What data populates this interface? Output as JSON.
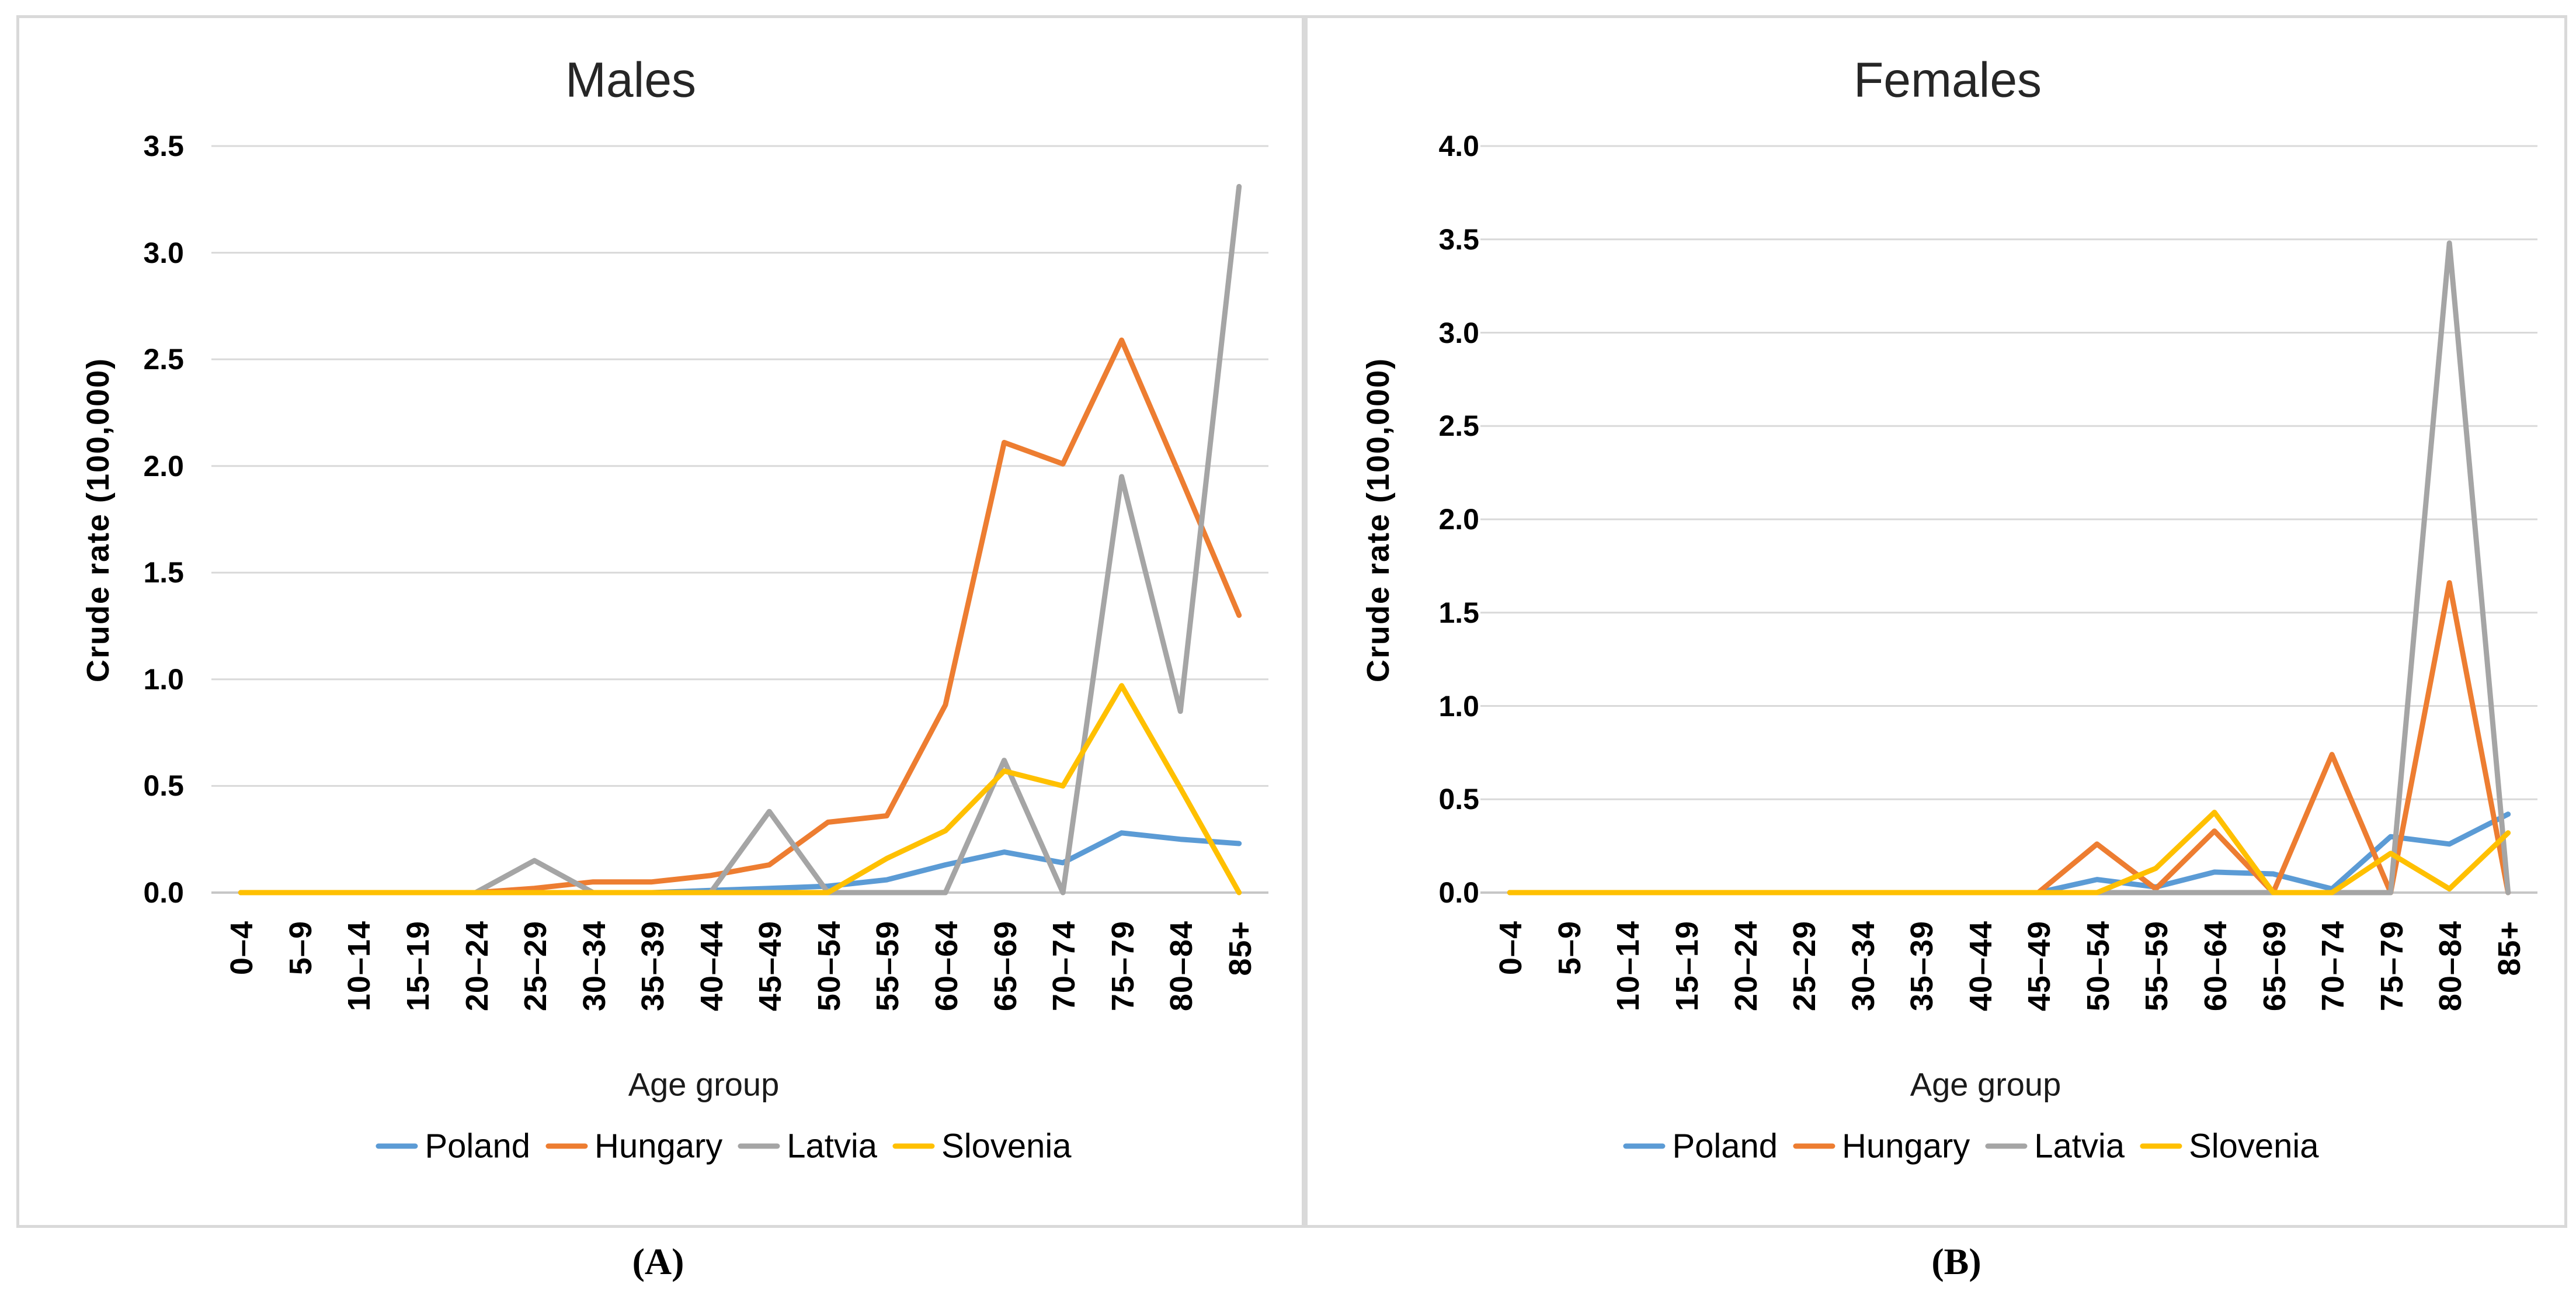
{
  "figure": {
    "background": "#ffffff",
    "captions": [
      "(A)",
      "(B)"
    ]
  },
  "colors": {
    "poland_blue": "#5B9BD5",
    "hungary_orange": "#ED7D31",
    "latvia_gray": "#A5A5A5",
    "slovenia_yellow": "#FFC000",
    "gridline": "#D9D9D9",
    "axis_line": "#C6C6C6",
    "panel_border": "#D9D9D9"
  },
  "chart_data": [
    {
      "type": "line",
      "title": "Males",
      "xlabel": "Age group",
      "ylabel": "Crude rate (100,000)",
      "ylim": [
        0,
        3.5
      ],
      "ytick_step": 0.5,
      "ytick_labels": [
        "3.5",
        "3.0",
        "2.5",
        "2.0",
        "1.5",
        "1.0",
        "0.5",
        "0.0"
      ],
      "grid": true,
      "legend_position": "bottom",
      "categories": [
        "0–4",
        "5–9",
        "10–14",
        "15–19",
        "20–24",
        "25–29",
        "30–34",
        "35–39",
        "40–44",
        "45–49",
        "50–54",
        "55–59",
        "60–64",
        "65–69",
        "70–74",
        "75–79",
        "80–84",
        "85+"
      ],
      "series": [
        {
          "name": "Poland",
          "color": "#5B9BD5",
          "values": [
            0,
            0,
            0,
            0,
            0,
            0,
            0,
            0,
            0.01,
            0.02,
            0.03,
            0.06,
            0.13,
            0.19,
            0.14,
            0.28,
            0.25,
            0.23
          ]
        },
        {
          "name": "Hungary",
          "color": "#ED7D31",
          "values": [
            0,
            0,
            0,
            0,
            0,
            0.02,
            0.05,
            0.05,
            0.08,
            0.13,
            0.33,
            0.36,
            0.88,
            2.11,
            2.01,
            2.59,
            1.95,
            1.3
          ]
        },
        {
          "name": "Latvia",
          "color": "#A5A5A5",
          "values": [
            0,
            0,
            0,
            0,
            0,
            0.15,
            0,
            0,
            0,
            0.38,
            0,
            0,
            0,
            0.62,
            0,
            1.95,
            0.85,
            3.31
          ]
        },
        {
          "name": "Slovenia",
          "color": "#FFC000",
          "values": [
            0,
            0,
            0,
            0,
            0,
            0,
            0,
            0,
            0,
            0,
            0,
            0.16,
            0.29,
            0.57,
            0.5,
            0.97,
            0.49,
            0
          ]
        }
      ]
    },
    {
      "type": "line",
      "title": "Females",
      "xlabel": "Age group",
      "ylabel": "Crude rate (100,000)",
      "ylim": [
        0,
        4.0
      ],
      "ytick_step": 0.5,
      "ytick_labels": [
        "4.0",
        "3.5",
        "3.0",
        "2.5",
        "2.0",
        "1.5",
        "1.0",
        "0.5",
        "0.0"
      ],
      "grid": true,
      "legend_position": "bottom",
      "categories": [
        "0–4",
        "5–9",
        "10–14",
        "15–19",
        "20–24",
        "25–29",
        "30–34",
        "35–39",
        "40–44",
        "45–49",
        "50–54",
        "55–59",
        "60–64",
        "65–69",
        "70–74",
        "75–79",
        "80–84",
        "85+"
      ],
      "series": [
        {
          "name": "Poland",
          "color": "#5B9BD5",
          "values": [
            0,
            0,
            0,
            0,
            0,
            0,
            0,
            0,
            0,
            0,
            0.07,
            0.03,
            0.11,
            0.1,
            0.02,
            0.3,
            0.26,
            0.42
          ]
        },
        {
          "name": "Hungary",
          "color": "#ED7D31",
          "values": [
            0,
            0,
            0,
            0,
            0,
            0,
            0,
            0,
            0,
            0,
            0.26,
            0.02,
            0.33,
            0,
            0.74,
            0,
            1.66,
            0
          ]
        },
        {
          "name": "Latvia",
          "color": "#A5A5A5",
          "values": [
            0,
            0,
            0,
            0,
            0,
            0,
            0,
            0,
            0,
            0,
            0,
            0,
            0,
            0,
            0,
            0,
            3.48,
            0
          ]
        },
        {
          "name": "Slovenia",
          "color": "#FFC000",
          "values": [
            0,
            0,
            0,
            0,
            0,
            0,
            0,
            0,
            0,
            0,
            0,
            0.13,
            0.43,
            0,
            0,
            0.21,
            0.02,
            0.32
          ]
        }
      ]
    }
  ]
}
